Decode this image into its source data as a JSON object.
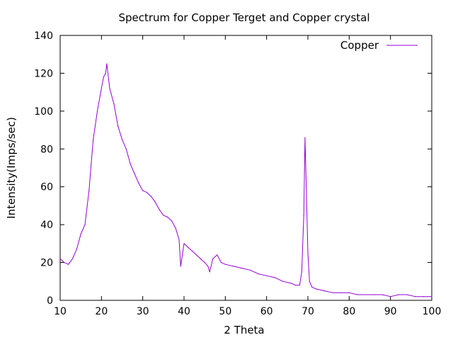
{
  "chart_data": {
    "type": "line",
    "title": "Spectrum for Copper Terget and Copper crystal",
    "xlabel": "2 Theta",
    "ylabel": "Intensity(Imps/sec)",
    "xlim": [
      10,
      100
    ],
    "ylim": [
      0,
      140
    ],
    "xticks": [
      10,
      20,
      30,
      40,
      50,
      60,
      70,
      80,
      90,
      100
    ],
    "yticks": [
      0,
      20,
      40,
      60,
      80,
      100,
      120,
      140
    ],
    "grid": false,
    "legend_position": "top-right",
    "series": [
      {
        "name": "Copper",
        "color": "#9400d3",
        "x": [
          10,
          11,
          12,
          13,
          14,
          15,
          16,
          17,
          17.5,
          18,
          19,
          20,
          20.5,
          21,
          21.3,
          22,
          23,
          24,
          25,
          26,
          27,
          28,
          29,
          30,
          31,
          32,
          33,
          34,
          35,
          36,
          37,
          38,
          38.8,
          39.2,
          40,
          41,
          42,
          43,
          44,
          45,
          45.8,
          46.2,
          47,
          48,
          49,
          50,
          52,
          54,
          56,
          58,
          60,
          62,
          64,
          66,
          67,
          68,
          68.5,
          69,
          69.3,
          69.6,
          70,
          70.4,
          71,
          72,
          74,
          76,
          78,
          80,
          82,
          84,
          86,
          88,
          90,
          92,
          94,
          96,
          98,
          100
        ],
        "values": [
          22,
          20,
          19,
          22,
          27,
          35,
          40,
          58,
          72,
          85,
          100,
          112,
          118,
          120,
          125,
          112,
          104,
          92,
          85,
          80,
          72,
          67,
          62,
          58,
          57,
          55,
          52,
          48,
          45,
          44,
          42,
          38,
          32,
          18,
          30,
          28,
          26,
          24,
          22,
          20,
          18,
          15,
          22,
          24,
          20,
          19,
          18,
          17,
          16,
          14,
          13,
          12,
          10,
          9,
          8,
          8,
          15,
          45,
          86,
          60,
          25,
          10,
          7,
          6,
          5,
          4,
          4,
          4,
          3,
          3,
          3,
          3,
          2,
          3,
          3,
          2,
          2,
          2
        ]
      }
    ]
  }
}
